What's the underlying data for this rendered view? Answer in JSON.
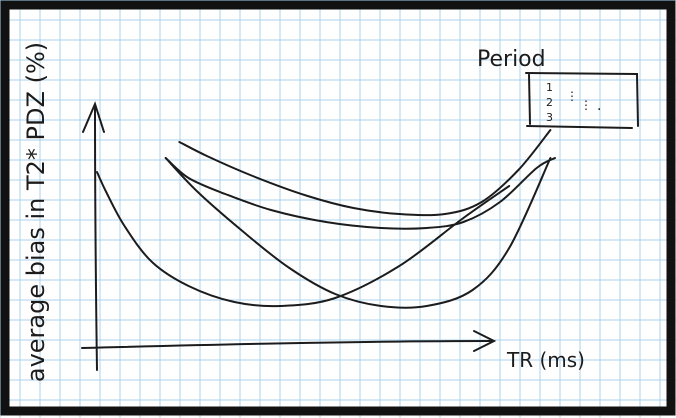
{
  "page": {
    "background": "#ffffff",
    "frame_color": "#111111",
    "grid_color": "#a9d2ee",
    "ink_color": "#1c1c1c"
  },
  "chart_data": {
    "type": "line",
    "title": "",
    "xlabel": "TR (ms)",
    "ylabel": "average bias in T2* PDZ (%)",
    "legend": {
      "title": "Period",
      "position": "top-right",
      "entries": [
        "1",
        "2",
        "3",
        "⋮",
        "⋮",
        "."
      ]
    },
    "grid": true,
    "x_ticks": [],
    "y_ticks": [],
    "xlim": [
      0,
      100
    ],
    "ylim": [
      0,
      100
    ],
    "series": [
      {
        "x": [
          0,
          2,
          6,
          12,
          20,
          30,
          40,
          52,
          66,
          80,
          90
        ],
        "y": [
          75,
          65,
          48,
          30,
          18,
          10,
          8,
          12,
          28,
          52,
          68
        ]
      },
      {
        "x": [
          15,
          22,
          32,
          42,
          52,
          62,
          72,
          82,
          90,
          99
        ],
        "y": [
          82,
          65,
          45,
          27,
          14,
          8,
          8,
          16,
          37,
          82
        ]
      },
      {
        "x": [
          15,
          20,
          28,
          38,
          50,
          62,
          72,
          80,
          88,
          96,
          100
        ],
        "y": [
          82,
          72,
          64,
          56,
          50,
          47,
          47,
          50,
          60,
          77,
          82
        ]
      },
      {
        "x": [
          18,
          24,
          34,
          46,
          56,
          66,
          76,
          84,
          92,
          99
        ],
        "y": [
          90,
          83,
          73,
          63,
          57,
          54,
          54,
          60,
          76,
          96
        ]
      }
    ]
  }
}
